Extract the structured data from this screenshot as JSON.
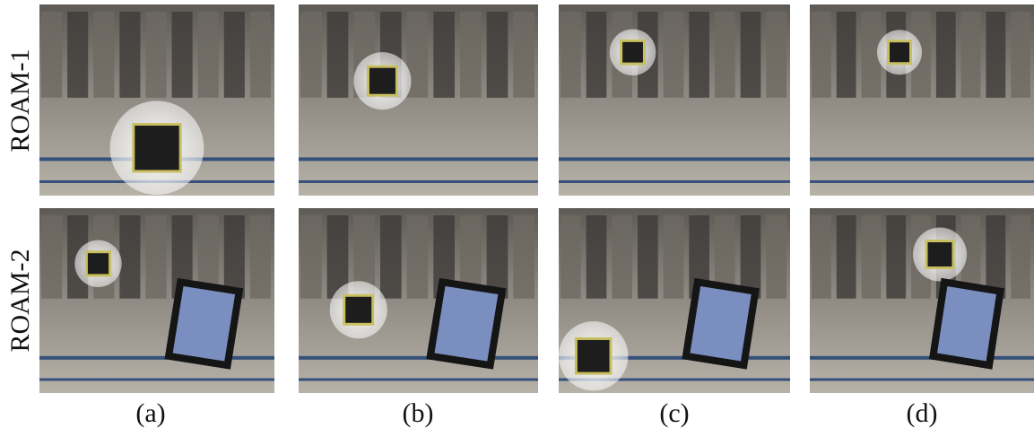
{
  "rows": [
    {
      "label": "ROAM-1"
    },
    {
      "label": "ROAM-2"
    }
  ],
  "columns": [
    {
      "label": "(a)"
    },
    {
      "label": "(b)"
    },
    {
      "label": "(c)"
    },
    {
      "label": "(d)"
    }
  ]
}
